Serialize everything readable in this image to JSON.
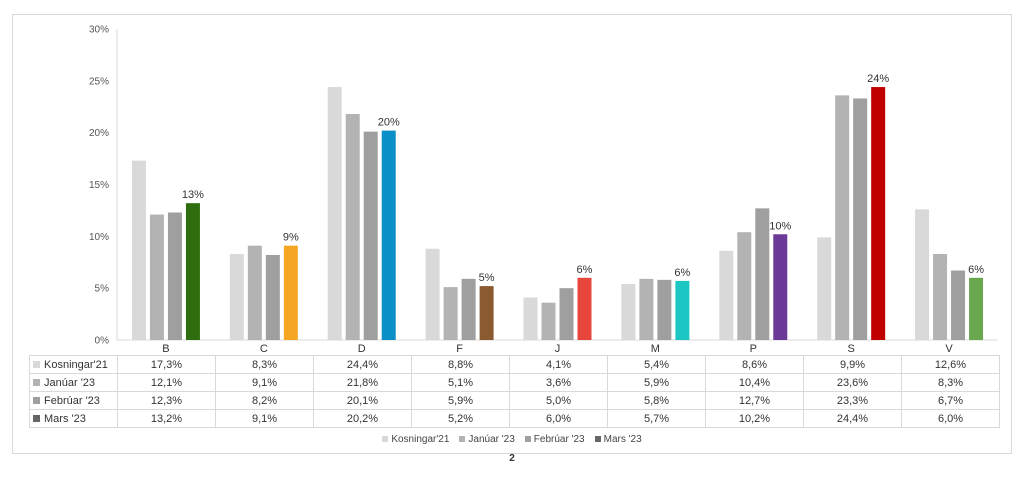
{
  "chart_data": {
    "type": "bar",
    "categories": [
      "B",
      "C",
      "D",
      "F",
      "J",
      "M",
      "P",
      "S",
      "V"
    ],
    "ylim": [
      0,
      30
    ],
    "yticks": [
      "0%",
      "5%",
      "10%",
      "15%",
      "20%",
      "25%",
      "30%"
    ],
    "grid": false,
    "legend_position": "bottom",
    "series": [
      {
        "name": "Kosningar'21",
        "color": "#d9d9d9",
        "values": [
          17.3,
          8.3,
          24.4,
          8.8,
          4.1,
          5.4,
          8.6,
          9.9,
          12.6
        ],
        "labels": [
          "17,3%",
          "8,3%",
          "24,4%",
          "8,8%",
          "4,1%",
          "5,4%",
          "8,6%",
          "9,9%",
          "12,6%"
        ]
      },
      {
        "name": "Janúar '23",
        "color": "#b3b3b3",
        "values": [
          12.1,
          9.1,
          21.8,
          5.1,
          3.6,
          5.9,
          10.4,
          23.6,
          8.3
        ],
        "labels": [
          "12,1%",
          "9,1%",
          "21,8%",
          "5,1%",
          "3,6%",
          "5,9%",
          "10,4%",
          "23,6%",
          "8,3%"
        ]
      },
      {
        "name": "Febrúar '23",
        "color": "#9f9f9f",
        "values": [
          12.3,
          8.2,
          20.1,
          5.9,
          5.0,
          5.8,
          12.7,
          23.3,
          6.7
        ],
        "labels": [
          "12,3%",
          "8,2%",
          "20,1%",
          "5,9%",
          "5,0%",
          "5,8%",
          "12,7%",
          "23,3%",
          "6,7%"
        ]
      },
      {
        "name": "Mars '23",
        "color": "#666666",
        "values": [
          13.2,
          9.1,
          20.2,
          5.2,
          6.0,
          5.7,
          10.2,
          24.4,
          6.0
        ],
        "labels": [
          "13,2%",
          "9,1%",
          "20,2%",
          "5,2%",
          "6,0%",
          "5,7%",
          "10,2%",
          "24,4%",
          "6,0%"
        ],
        "bar_colors": [
          "#2e6e0e",
          "#f5a623",
          "#0a8fc7",
          "#8a5a30",
          "#e8453c",
          "#1cc7c3",
          "#6b3a96",
          "#c00000",
          "#6aa84f"
        ],
        "data_labels": [
          "13%",
          "9%",
          "20%",
          "5%",
          "6%",
          "6%",
          "10%",
          "24%",
          "6%"
        ]
      }
    ]
  },
  "page_number": "2"
}
